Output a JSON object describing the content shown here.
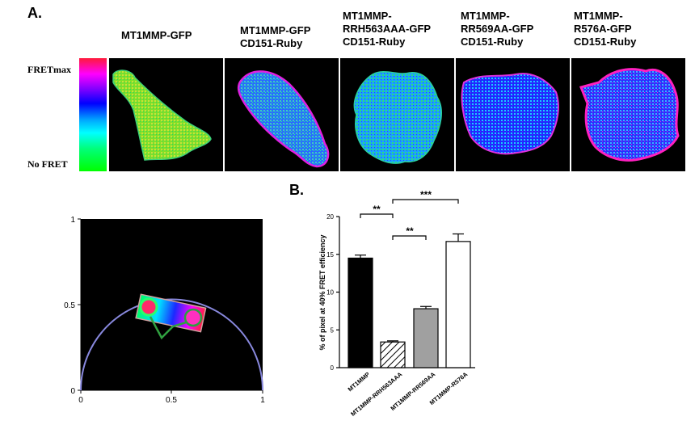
{
  "panel_a": {
    "letter": "A.",
    "conditions": [
      "MT1MMP-GFP",
      "MT1MMP-GFP\nCD151-Ruby",
      "MT1MMP-\nRRH563AAA-GFP\nCD151-Ruby",
      "MT1MMP-\nRR569AA-GFP\nCD151-Ruby",
      "MT1MMP-\nR576A-GFP\nCD151-Ruby"
    ],
    "scale_top": "FRETmax",
    "scale_bottom": "No FRET"
  },
  "phasor": {
    "y_ticks": [
      "1",
      "0.5",
      "0"
    ],
    "x_ticks": [
      "0",
      "0.5",
      "1"
    ]
  },
  "panel_b": {
    "letter": "B.",
    "significance": [
      "**",
      "***",
      "**"
    ]
  },
  "chart_data": {
    "type": "bar",
    "categories": [
      "MT1MMP",
      "MT1MMP-RRH563AAA",
      "MT1MMP-RR569AA",
      "MT1MMP-R576A"
    ],
    "values": [
      14.5,
      3.4,
      7.8,
      16.7
    ],
    "errors": [
      0.4,
      0.15,
      0.3,
      1.0
    ],
    "fills": [
      "#000000",
      "hatched",
      "#a0a0a0",
      "#ffffff"
    ],
    "xlabel": "",
    "ylabel": "% of pixel at 40% FRET efficiency",
    "ylim": [
      0,
      20
    ],
    "yticks": [
      0,
      5,
      10,
      15,
      20
    ]
  }
}
